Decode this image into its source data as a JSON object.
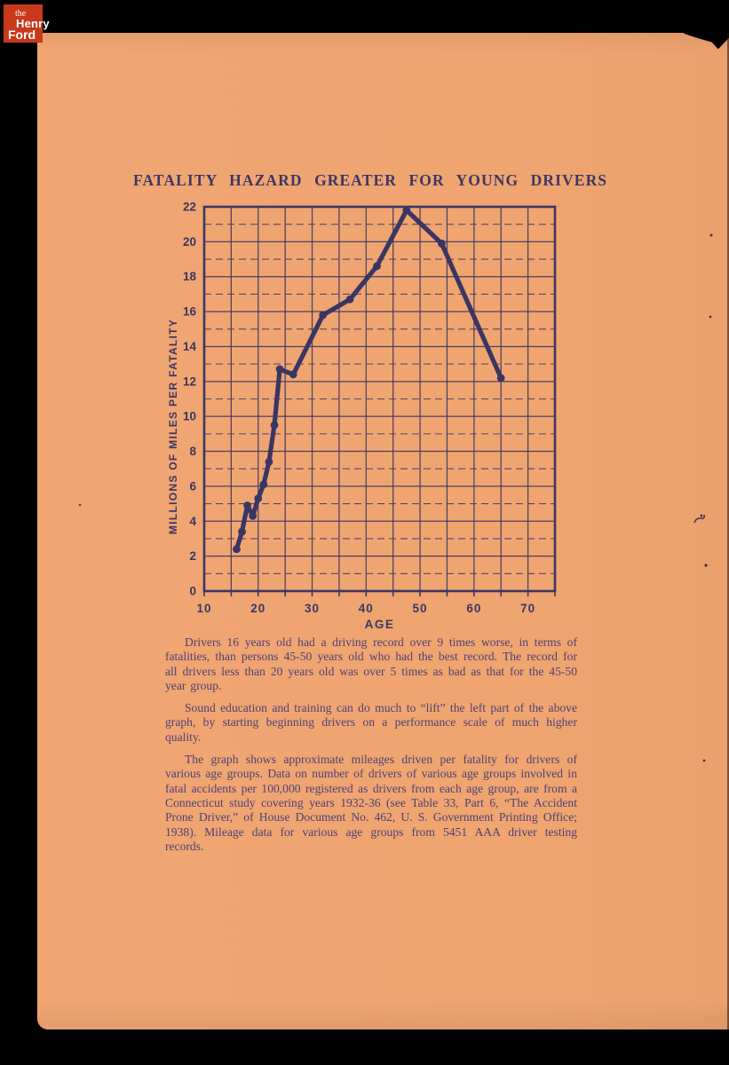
{
  "colors": {
    "page_background": "#f0a470",
    "ink_chart": "#3a3663",
    "ink_body": "#4c4274",
    "logo_red": "#c9391c",
    "scan_background": "#000000"
  },
  "logo": {
    "line1": "the",
    "line2": "Henry",
    "line3": "Ford"
  },
  "title": "FATALITY HAZARD GREATER FOR YOUNG DRIVERS",
  "chart_data": {
    "type": "line",
    "title": "FATALITY HAZARD GREATER FOR YOUNG DRIVERS",
    "xlabel": "AGE",
    "ylabel": "MILLIONS OF MILES PER FATALITY",
    "xlim": [
      10,
      75
    ],
    "ylim": [
      0,
      22
    ],
    "x_ticks": [
      10,
      20,
      30,
      40,
      50,
      60,
      70
    ],
    "x_grid_step": 5,
    "y_ticks": [
      0,
      2,
      4,
      6,
      8,
      10,
      12,
      14,
      16,
      18,
      20,
      22
    ],
    "grid": "vertical solid every 5 years; horizontal solid at even values, dashed at odd values",
    "legend": "none",
    "series": [
      {
        "name": "millions of miles driven per fatality",
        "points": [
          [
            16,
            2.4
          ],
          [
            17,
            3.4
          ],
          [
            18,
            4.9
          ],
          [
            19,
            4.3
          ],
          [
            20,
            5.3
          ],
          [
            21,
            6.1
          ],
          [
            22,
            7.4
          ],
          [
            23,
            9.5
          ],
          [
            24,
            12.7
          ],
          [
            26.5,
            12.4
          ],
          [
            32,
            15.8
          ],
          [
            37,
            16.7
          ],
          [
            42,
            18.6
          ],
          [
            47.5,
            21.8
          ],
          [
            54,
            19.9
          ],
          [
            65,
            12.2
          ]
        ]
      }
    ]
  },
  "body": {
    "paragraphs": [
      {
        "text": "Drivers 16 years old had a driving record over 9 times worse, in terms of fatalities, than persons 45-50 years old who had the best record.  The record for all drivers less than 20 years old was over 5 times as bad as that for the 45-50 year group."
      },
      {
        "text": "Sound education and training can do much to “lift” the left part of the above graph, by starting beginning drivers on a performance scale of much higher quality."
      },
      {
        "text": "The graph shows approximate mileages driven per fatality for drivers of various age groups.  Data on number of drivers of various age groups involved in fatal accidents per 100,000 registered as drivers from each age group, are from a Connecticut study covering years 1932-36 (see Table 33, Part 6, “The Accident Prone Driver,” of House Document No. 462, U. S. Government Printing Office; 1938).  Mileage data for various age groups from 5451 AAA driver testing records."
      }
    ]
  }
}
